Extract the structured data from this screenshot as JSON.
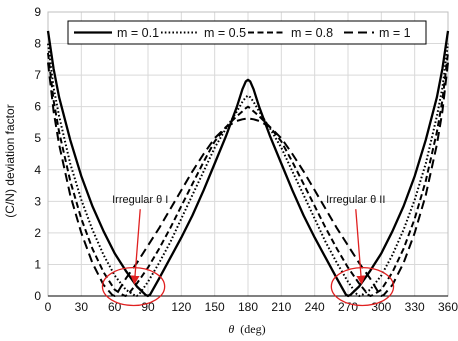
{
  "chart_data": {
    "type": "line",
    "title": "",
    "xlabel_symbol": "θ",
    "xlabel_unit": "(deg)",
    "ylabel": "(C/N) deviation factor",
    "xlim": [
      0,
      360
    ],
    "ylim": [
      0,
      9
    ],
    "xticks": [
      0,
      30,
      60,
      90,
      120,
      150,
      180,
      210,
      240,
      270,
      300,
      330,
      360
    ],
    "yticks": [
      0,
      1,
      2,
      3,
      4,
      5,
      6,
      7,
      8,
      9
    ],
    "grid": true,
    "legend_position": "top",
    "series": [
      {
        "name": "m = 0.1",
        "style": "solid",
        "x": [
          0,
          5,
          10,
          20,
          30,
          40,
          50,
          60,
          70,
          80,
          88,
          90,
          92,
          100,
          110,
          120,
          130,
          140,
          150,
          160,
          170,
          175,
          178,
          180,
          182,
          185,
          190,
          200,
          210,
          220,
          230,
          240,
          250,
          260,
          268,
          270,
          272,
          280,
          290,
          300,
          310,
          320,
          330,
          340,
          350,
          355,
          360
        ],
        "y": [
          8.4,
          7.2,
          6.3,
          4.95,
          3.8,
          2.85,
          2.05,
          1.35,
          0.8,
          0.3,
          0.03,
          0.0,
          0.05,
          0.55,
          1.2,
          1.85,
          2.55,
          3.35,
          4.2,
          5.05,
          6.0,
          6.55,
          6.8,
          6.85,
          6.8,
          6.55,
          6.0,
          5.05,
          4.2,
          3.35,
          2.55,
          1.85,
          1.2,
          0.55,
          0.05,
          0.0,
          0.03,
          0.3,
          0.8,
          1.35,
          2.05,
          2.85,
          3.8,
          4.95,
          6.3,
          7.2,
          8.4
        ]
      },
      {
        "name": "m = 0.5",
        "style": "dotted",
        "x": [
          0,
          5,
          10,
          20,
          30,
          40,
          50,
          60,
          70,
          78,
          80,
          82,
          90,
          100,
          110,
          120,
          130,
          140,
          150,
          160,
          170,
          175,
          178,
          180,
          182,
          185,
          190,
          200,
          210,
          220,
          230,
          240,
          250,
          260,
          270,
          278,
          280,
          282,
          290,
          300,
          310,
          320,
          330,
          340,
          350,
          355,
          360
        ],
        "y": [
          8.0,
          6.6,
          5.7,
          4.2,
          3.05,
          2.1,
          1.3,
          0.65,
          0.2,
          0.02,
          0.0,
          0.05,
          0.45,
          1.05,
          1.7,
          2.45,
          3.2,
          3.95,
          4.7,
          5.3,
          5.85,
          6.15,
          6.3,
          6.35,
          6.3,
          6.15,
          5.85,
          5.3,
          4.7,
          3.95,
          3.2,
          2.45,
          1.7,
          1.05,
          0.45,
          0.05,
          0.0,
          0.02,
          0.2,
          0.65,
          1.3,
          2.1,
          3.05,
          4.2,
          5.7,
          6.6,
          8.0
        ]
      },
      {
        "name": "m = 0.8",
        "style": "dashed",
        "x": [
          0,
          5,
          10,
          20,
          30,
          40,
          50,
          60,
          68,
          70,
          72,
          80,
          90,
          100,
          110,
          120,
          130,
          140,
          150,
          160,
          170,
          175,
          178,
          180,
          182,
          185,
          190,
          200,
          210,
          220,
          230,
          240,
          250,
          260,
          270,
          280,
          288,
          290,
          292,
          300,
          310,
          320,
          330,
          340,
          350,
          355,
          360
        ],
        "y": [
          7.7,
          6.2,
          5.2,
          3.65,
          2.45,
          1.5,
          0.75,
          0.2,
          0.02,
          0.0,
          0.05,
          0.4,
          0.9,
          1.5,
          2.15,
          2.85,
          3.55,
          4.25,
          4.9,
          5.35,
          5.7,
          5.85,
          5.95,
          6.0,
          5.95,
          5.85,
          5.7,
          5.35,
          4.9,
          4.25,
          3.55,
          2.85,
          2.15,
          1.5,
          0.9,
          0.4,
          0.05,
          0.0,
          0.02,
          0.2,
          0.75,
          1.5,
          2.45,
          3.65,
          5.2,
          6.2,
          7.7
        ]
      },
      {
        "name": "m = 1",
        "style": "longdash",
        "x": [
          0,
          5,
          10,
          20,
          30,
          40,
          50,
          58,
          60,
          62,
          70,
          80,
          90,
          100,
          110,
          120,
          130,
          140,
          150,
          160,
          170,
          175,
          178,
          180,
          182,
          185,
          190,
          200,
          210,
          220,
          230,
          240,
          250,
          260,
          270,
          280,
          290,
          298,
          300,
          302,
          310,
          320,
          330,
          340,
          350,
          355,
          360
        ],
        "y": [
          7.4,
          5.85,
          4.8,
          3.2,
          2.0,
          1.05,
          0.35,
          0.03,
          0.0,
          0.08,
          0.55,
          1.05,
          1.6,
          2.15,
          2.75,
          3.35,
          3.95,
          4.5,
          5.0,
          5.35,
          5.55,
          5.6,
          5.62,
          5.65,
          5.62,
          5.6,
          5.55,
          5.35,
          5.0,
          4.5,
          3.95,
          3.35,
          2.75,
          2.15,
          1.6,
          1.05,
          0.55,
          0.08,
          0.0,
          0.03,
          0.35,
          1.05,
          2.0,
          3.2,
          4.8,
          5.85,
          7.4
        ]
      }
    ],
    "annotations": [
      {
        "text": "Irregular θ I",
        "arrow_from": [
          83,
          2.75
        ],
        "arrow_to": [
          78,
          0.5
        ],
        "ellipse_center": [
          77,
          0.3
        ],
        "ellipse_radius": [
          28,
          0.6
        ]
      },
      {
        "text": "Irregular θ II",
        "arrow_from": [
          277,
          2.75
        ],
        "arrow_to": [
          282,
          0.5
        ],
        "ellipse_center": [
          283,
          0.3
        ],
        "ellipse_radius": [
          28,
          0.6
        ]
      }
    ],
    "annotation_color": "#e02020"
  }
}
